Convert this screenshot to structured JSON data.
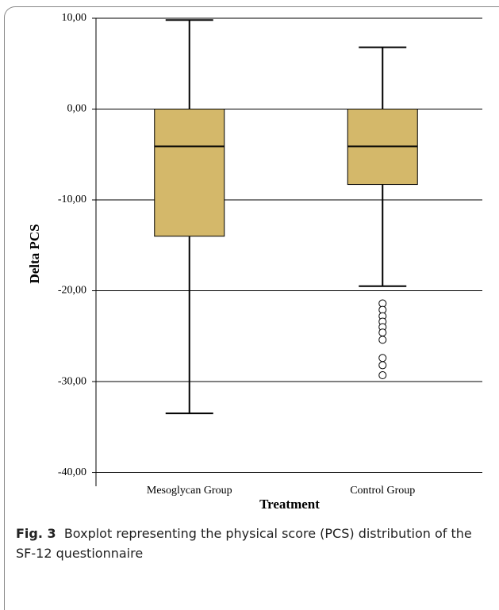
{
  "chart_data": {
    "type": "box",
    "ylabel": "Delta PCS",
    "xlabel": "Treatment",
    "categories": [
      "Mesoglycan Group",
      "Control Group"
    ],
    "boxes": [
      {
        "whisker_low": -33.5,
        "q1": -14,
        "median": -4.1,
        "q3": 0,
        "whisker_high": 9.8,
        "outliers": []
      },
      {
        "whisker_low": -19.5,
        "q1": -8.3,
        "median": -4.1,
        "q3": 0,
        "whisker_high": 6.8,
        "outliers": [
          -21.4,
          -22.1,
          -22.8,
          -23.4,
          -24.0,
          -24.6,
          -25.4,
          -27.4,
          -28.2,
          -29.3
        ]
      }
    ],
    "color": "#d4b86a",
    "ylim": [
      -41,
      10
    ],
    "yticks": [
      {
        "value": 10,
        "label": "10,00"
      },
      {
        "value": 0,
        "label": "0,00"
      },
      {
        "value": -10,
        "label": "-10,00"
      },
      {
        "value": -20,
        "label": "-20,00"
      },
      {
        "value": -30,
        "label": "-30,00"
      },
      {
        "value": -40,
        "label": "-40,00"
      }
    ],
    "grid": true
  },
  "caption": {
    "label": "Fig. 3",
    "text": "Boxplot representing the physical score (PCS) distribution of the SF-12 questionnaire"
  }
}
